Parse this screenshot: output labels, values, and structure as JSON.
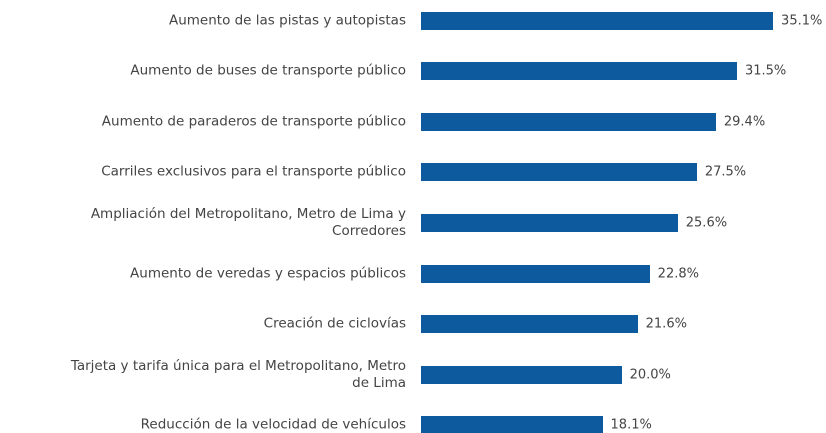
{
  "chart_data": {
    "type": "bar",
    "orientation": "horizontal",
    "color": "#0e5a9f",
    "categories": [
      "Aumento de las pistas y autopistas",
      "Aumento de buses de transporte público",
      "Aumento de paraderos de transporte público",
      "Carriles exclusivos para el transporte público",
      "Ampliación del Metropolitano, Metro de Lima y\nCorredores",
      "Aumento de veredas y espacios públicos",
      "Creación de ciclovías",
      "Tarjeta y tarifa única para el Metropolitano, Metro\nde Lima",
      "Reducción de la velocidad de vehículos"
    ],
    "values": [
      35.1,
      31.5,
      29.4,
      27.5,
      25.6,
      22.8,
      21.6,
      20.0,
      18.1
    ],
    "value_labels": [
      "35.1%",
      "31.5%",
      "29.4%",
      "27.5%",
      "25.6%",
      "22.8%",
      "21.6%",
      "20.0%",
      "18.1%"
    ]
  }
}
